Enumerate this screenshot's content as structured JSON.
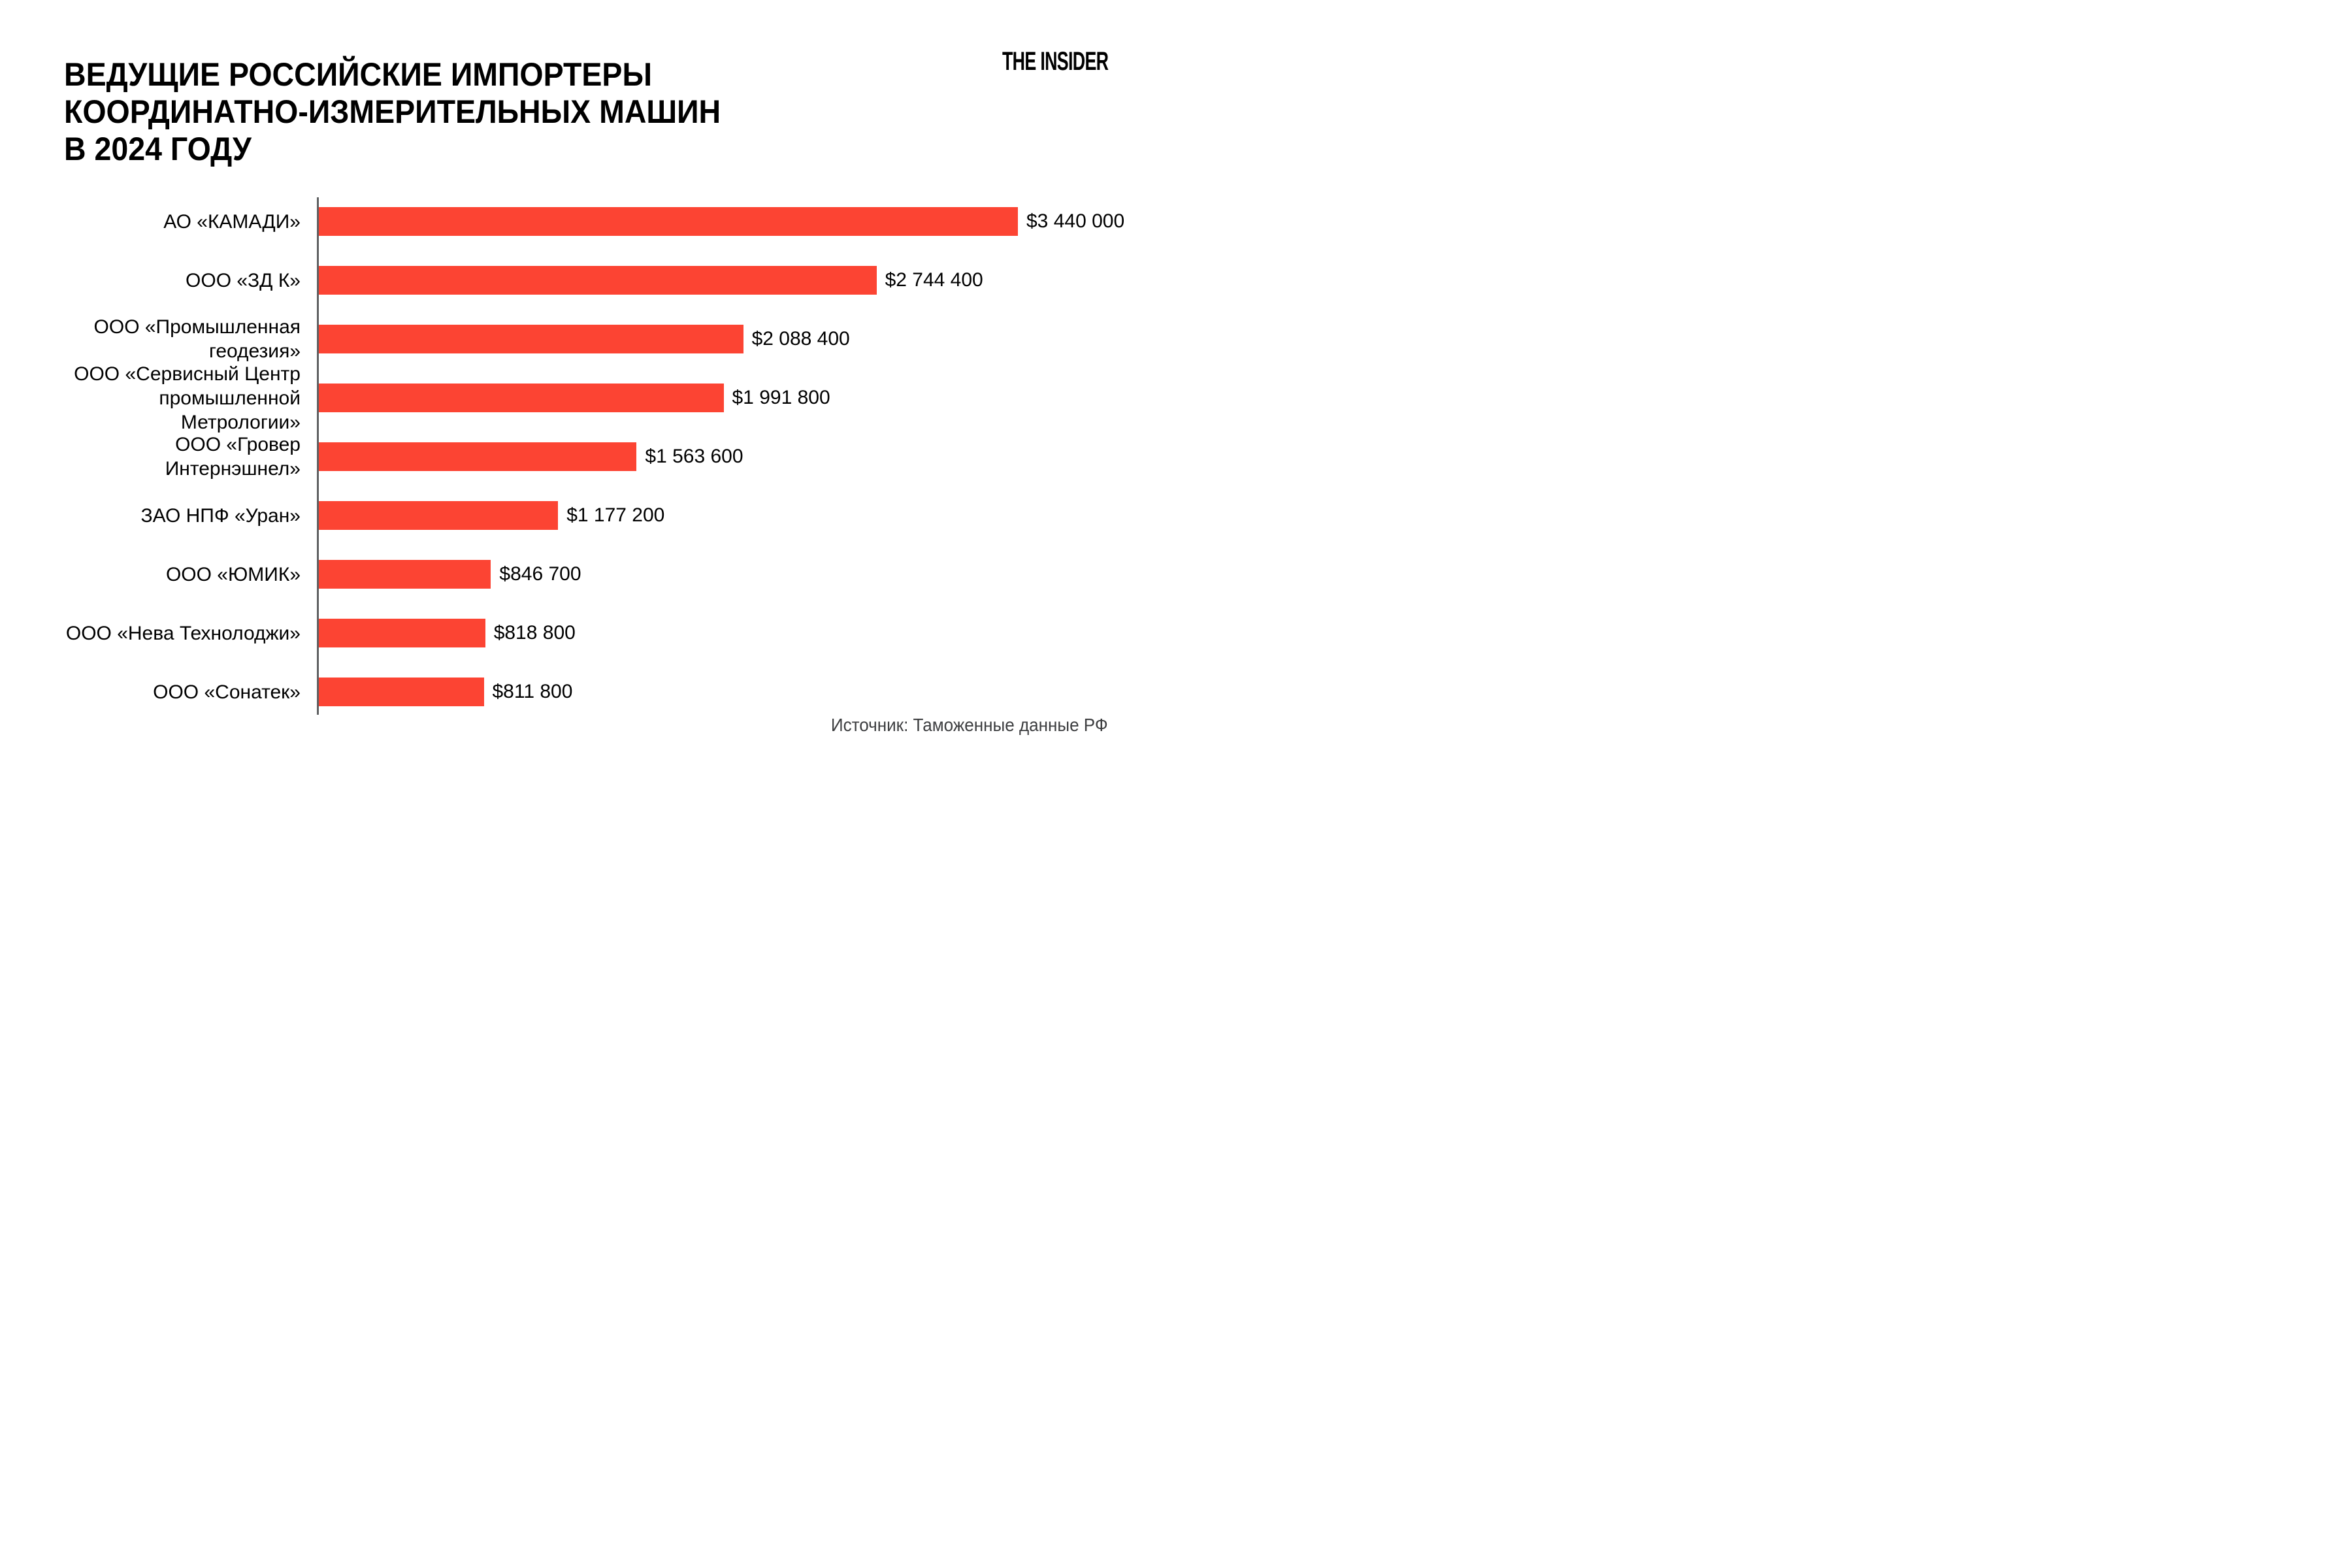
{
  "header": {
    "title_lines": [
      "ВЕДУЩИЕ РОССИЙСКИЕ ИМПОРТЕРЫ",
      "КООРДИНАТНО-ИЗМЕРИТЕЛЬНЫХ МАШИН",
      "В 2024 ГОДУ"
    ],
    "brand": "THE INSIDER"
  },
  "chart_data": {
    "type": "bar",
    "orientation": "horizontal",
    "title": "ВЕДУЩИЕ РОССИЙСКИЕ ИМПОРТЕРЫ КООРДИНАТНО-ИЗМЕРИТЕЛЬНЫХ МАШИН В 2024 ГОДУ",
    "categories": [
      "АО «КАМАДИ»",
      "ООО «ЗД К»",
      "ООО «Промышленная геодезия»",
      "ООО «Сервисный Центр промышленной Метрологии»",
      "ООО «Гровер Интернэшнел»",
      "ЗАО НПФ «Уран»",
      "ООО «ЮМИК»",
      "ООО «Нева Технолоджи»",
      "ООО «Сонатек»"
    ],
    "values": [
      3440000,
      2744400,
      2088400,
      1991800,
      1563600,
      1177200,
      846700,
      818800,
      811800
    ],
    "value_labels": [
      "$3 440 000",
      "$2 744 400",
      "$2 088 400",
      "$1 991 800",
      "$1 563 600",
      "$1 177 200",
      "$846 700",
      "$818 800",
      "$811 800"
    ],
    "unit": "USD",
    "xlim": [
      0,
      3440000
    ],
    "grid": false,
    "legend": false,
    "bar_color": "#FC4433",
    "axis_color": "#5F6062"
  },
  "footer": {
    "source": "Источник: Таможенные данные РФ"
  }
}
